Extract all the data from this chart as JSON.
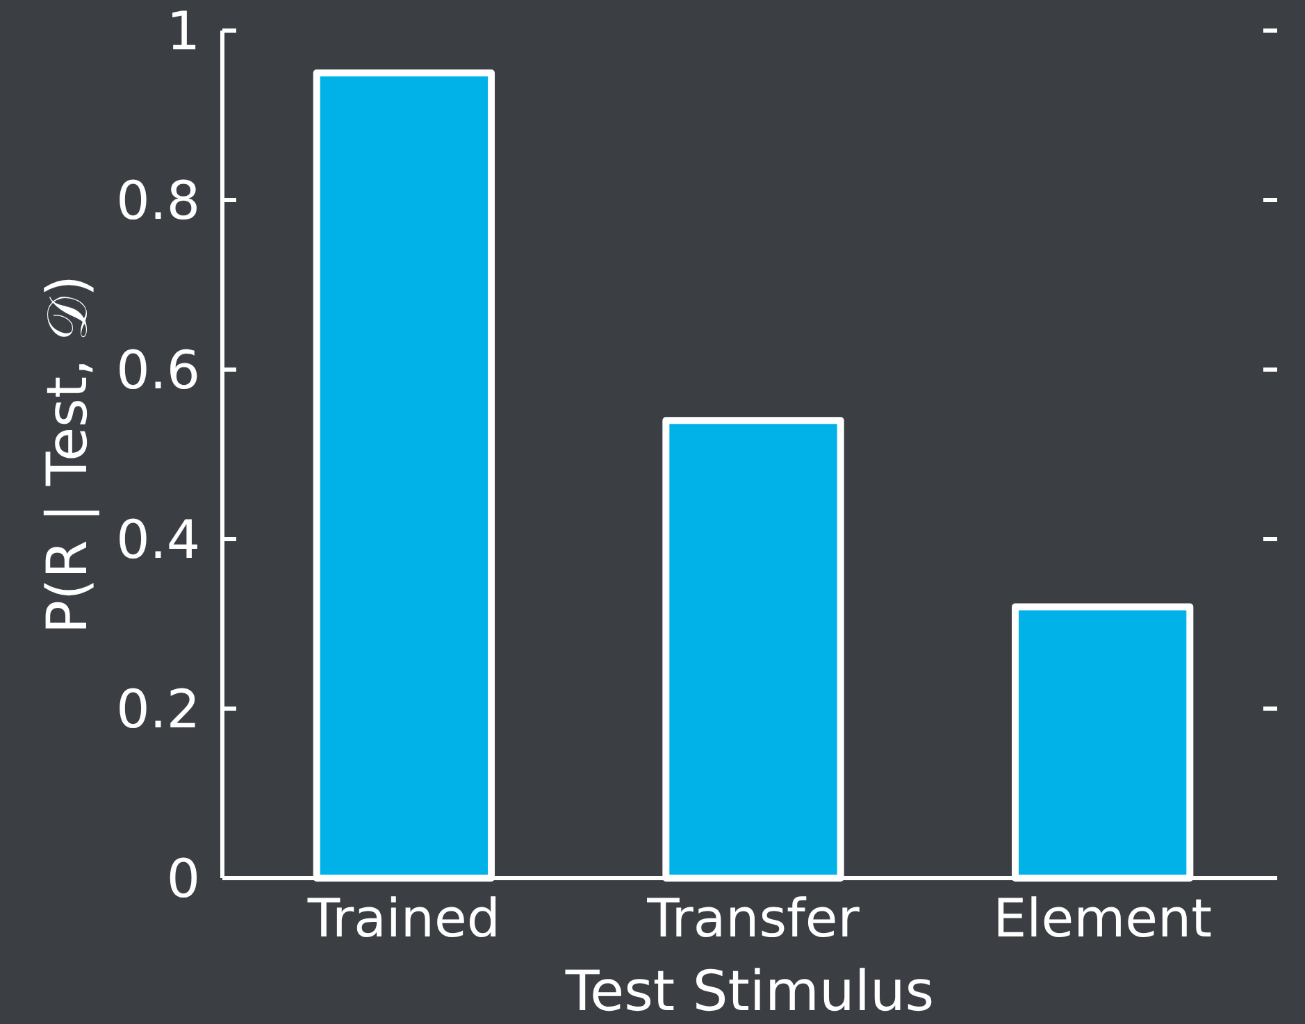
{
  "chart_data": {
    "type": "bar",
    "xlabel": "Test Stimulus",
    "ylabel": "P(R | Test, 𝒟)",
    "categories": [
      "Trained",
      "Transfer",
      "Element"
    ],
    "values": [
      0.95,
      0.54,
      0.32
    ],
    "color": "#00b2e8",
    "ylim": [
      0,
      1
    ],
    "yticks": [
      0,
      0.2,
      0.4,
      0.6,
      0.8,
      1
    ],
    "grid": false
  }
}
